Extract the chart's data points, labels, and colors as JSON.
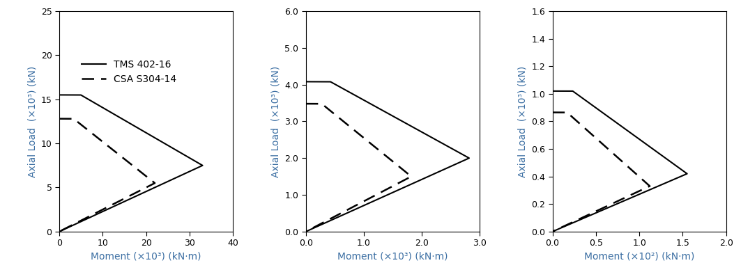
{
  "plots": [
    {
      "ylabel": "Axial Load  (×10³) (kN)",
      "xlabel": "Moment (×10³) (kN·m)",
      "ylim": [
        0,
        25
      ],
      "xlim": [
        0,
        40
      ],
      "yticks": [
        0,
        5,
        10,
        15,
        20,
        25
      ],
      "xticks": [
        0,
        10,
        20,
        30,
        40
      ],
      "xticklabels": [
        "0",
        "10",
        "20",
        "30",
        "40"
      ],
      "yticklabels": [
        "0",
        "5",
        "10",
        "15",
        "20",
        "25"
      ],
      "legend": true,
      "tms": {
        "Pmax": 15.5,
        "Mmax": 33.0,
        "Pbalance": 7.5
      },
      "csa": {
        "Pmax": 12.8,
        "Mmax": 22.0,
        "Pbalance": 5.5
      }
    },
    {
      "ylabel": "Axial Load  (×10³) (kN)",
      "xlabel": "Moment (×10³) (kN·m)",
      "ylim": [
        0,
        6.0
      ],
      "xlim": [
        0,
        3.0
      ],
      "yticks": [
        0.0,
        1.0,
        2.0,
        3.0,
        4.0,
        5.0,
        6.0
      ],
      "xticks": [
        0.0,
        1.0,
        2.0,
        3.0
      ],
      "xticklabels": [
        "0.0",
        "1.0",
        "2.0",
        "3.0"
      ],
      "yticklabels": [
        "0.0",
        "1.0",
        "2.0",
        "3.0",
        "4.0",
        "5.0",
        "6.0"
      ],
      "legend": false,
      "tms": {
        "Pmax": 4.08,
        "Mmax": 2.82,
        "Pbalance": 2.0
      },
      "csa": {
        "Pmax": 3.48,
        "Mmax": 1.82,
        "Pbalance": 1.5
      }
    },
    {
      "ylabel": "Axial Load  (×10³) (kN)",
      "xlabel": "Moment (×10²) (kN·m)",
      "ylim": [
        0,
        1.6
      ],
      "xlim": [
        0,
        2.0
      ],
      "yticks": [
        0.0,
        0.2,
        0.4,
        0.6,
        0.8,
        1.0,
        1.2,
        1.4,
        1.6
      ],
      "xticks": [
        0.0,
        0.5,
        1.0,
        1.5,
        2.0
      ],
      "xticklabels": [
        "0.0",
        "0.5",
        "1.0",
        "1.5",
        "2.0"
      ],
      "yticklabels": [
        "0.0",
        "0.2",
        "0.4",
        "0.6",
        "0.8",
        "1.0",
        "1.2",
        "1.4",
        "1.6"
      ],
      "legend": false,
      "tms": {
        "Pmax": 1.02,
        "Mmax": 1.55,
        "Pbalance": 0.42
      },
      "csa": {
        "Pmax": 0.865,
        "Mmax": 1.12,
        "Pbalance": 0.33
      }
    }
  ],
  "line_color": "#000000",
  "bg_color": "#ffffff",
  "legend_labels": [
    "TMS 402-16",
    "CSA S304-14"
  ],
  "fontsize": 9,
  "label_fontsize": 10
}
